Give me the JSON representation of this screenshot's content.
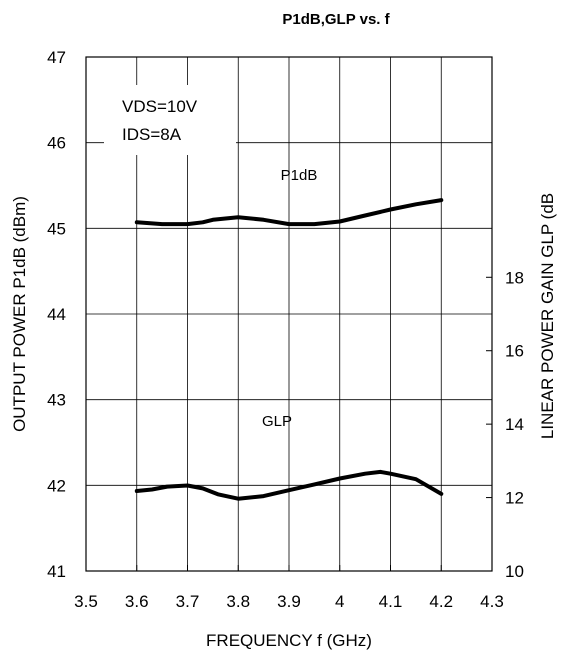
{
  "chart_data": {
    "type": "line",
    "title": "P1dB,GLP vs. f",
    "xlabel": "FREQUENCY f (GHz)",
    "ylabel_left": "OUTPUT POWER P1dB (dBm)",
    "ylabel_right": "LINEAR POWER GAIN GLP (dB",
    "xlim": [
      3.5,
      4.3
    ],
    "ylim_left": [
      41,
      47
    ],
    "ylim_right": [
      10,
      24
    ],
    "x_ticks": [
      "3.5",
      "3.6",
      "3.7",
      "3.8",
      "3.9",
      "4",
      "4.1",
      "4.2",
      "4.3"
    ],
    "y_left_ticks": [
      "41",
      "42",
      "43",
      "44",
      "45",
      "46",
      "47"
    ],
    "y_right_ticks": [
      "10",
      "12",
      "14",
      "16",
      "18"
    ],
    "grid": true,
    "annotations": {
      "condition_1": "VDS=10V",
      "condition_2": "IDS=8A"
    },
    "series": [
      {
        "name": "P1dB",
        "axis": "left",
        "x": [
          3.6,
          3.65,
          3.7,
          3.73,
          3.75,
          3.8,
          3.85,
          3.9,
          3.95,
          4.0,
          4.05,
          4.1,
          4.15,
          4.2
        ],
        "values": [
          45.07,
          45.05,
          45.05,
          45.07,
          45.1,
          45.13,
          45.1,
          45.05,
          45.05,
          45.08,
          45.15,
          45.22,
          45.28,
          45.33
        ]
      },
      {
        "name": "GLP",
        "axis": "right",
        "x": [
          3.6,
          3.63,
          3.66,
          3.7,
          3.73,
          3.76,
          3.8,
          3.85,
          3.9,
          3.95,
          4.0,
          4.05,
          4.08,
          4.1,
          4.15,
          4.2
        ],
        "values": [
          12.18,
          12.22,
          12.3,
          12.33,
          12.25,
          12.09,
          11.97,
          12.04,
          12.2,
          12.36,
          12.52,
          12.65,
          12.7,
          12.65,
          12.5,
          12.1
        ]
      }
    ]
  }
}
